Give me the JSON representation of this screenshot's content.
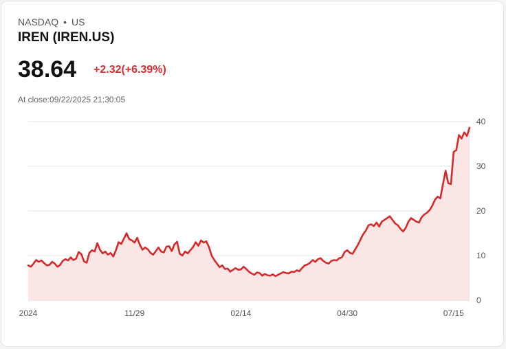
{
  "header": {
    "exchange": "NASDAQ",
    "separator": "•",
    "market": "US",
    "ticker": "IREN (IREN.US)",
    "price": "38.64",
    "change": "+2.32(+6.39%)",
    "close_time": "At close:09/22/2025 21:30:05"
  },
  "colors": {
    "line": "#d62a2a",
    "fill": "#fbe6e6",
    "grid": "#e6e6e6",
    "change": "#d12f2f"
  },
  "chart_data": {
    "type": "area",
    "title": "IREN (IREN.US)",
    "ylim": [
      0,
      40
    ],
    "y_ticks": [
      "0",
      "10",
      "20",
      "30",
      "40"
    ],
    "x_tick_labels": [
      "2024",
      "11/29",
      "02/14",
      "04/30",
      "07/15"
    ],
    "x_tick_index": [
      0,
      40,
      80,
      120,
      160
    ],
    "series": [
      {
        "name": "IREN",
        "values": [
          7.8,
          7.5,
          8.2,
          9.0,
          8.6,
          8.9,
          8.3,
          7.8,
          7.9,
          8.6,
          8.2,
          7.5,
          7.9,
          8.8,
          9.2,
          8.9,
          9.6,
          9.0,
          9.3,
          10.8,
          10.3,
          8.7,
          8.4,
          10.6,
          11.2,
          10.9,
          12.8,
          11.3,
          10.5,
          10.9,
          10.2,
          10.6,
          9.8,
          11.2,
          13.0,
          12.6,
          13.8,
          15.0,
          13.7,
          13.4,
          12.9,
          14.0,
          12.4,
          11.3,
          11.8,
          11.4,
          10.6,
          10.2,
          11.0,
          11.8,
          10.9,
          10.7,
          12.0,
          12.1,
          11.0,
          12.5,
          13.1,
          10.4,
          10.0,
          10.9,
          10.5,
          11.2,
          11.9,
          13.0,
          12.2,
          13.4,
          12.9,
          13.2,
          11.9,
          10.0,
          9.0,
          8.2,
          7.4,
          7.8,
          7.0,
          7.1,
          6.4,
          6.8,
          7.2,
          6.8,
          6.9,
          7.5,
          7.0,
          6.4,
          6.0,
          5.7,
          6.2,
          6.1,
          5.5,
          5.9,
          5.6,
          5.5,
          5.8,
          5.4,
          5.7,
          6.0,
          6.3,
          6.1,
          6.0,
          6.4,
          6.3,
          6.7,
          6.5,
          7.2,
          7.8,
          8.0,
          8.4,
          9.0,
          8.6,
          9.2,
          9.4,
          8.8,
          8.4,
          8.2,
          8.8,
          9.0,
          8.9,
          9.4,
          9.6,
          10.8,
          11.2,
          10.6,
          10.4,
          11.4,
          12.4,
          13.6,
          14.8,
          15.6,
          16.8,
          17.0,
          16.6,
          17.4,
          16.5,
          17.6,
          18.0,
          18.4,
          18.8,
          18.0,
          17.2,
          16.8,
          16.0,
          15.4,
          16.2,
          17.6,
          18.4,
          18.0,
          17.6,
          17.4,
          18.6,
          19.2,
          19.6,
          20.2,
          21.2,
          22.5,
          23.2,
          22.8,
          26.0,
          29.0,
          26.2,
          26.0,
          33.2,
          33.6,
          37.0,
          36.2,
          37.6,
          36.8,
          38.64
        ]
      }
    ]
  }
}
